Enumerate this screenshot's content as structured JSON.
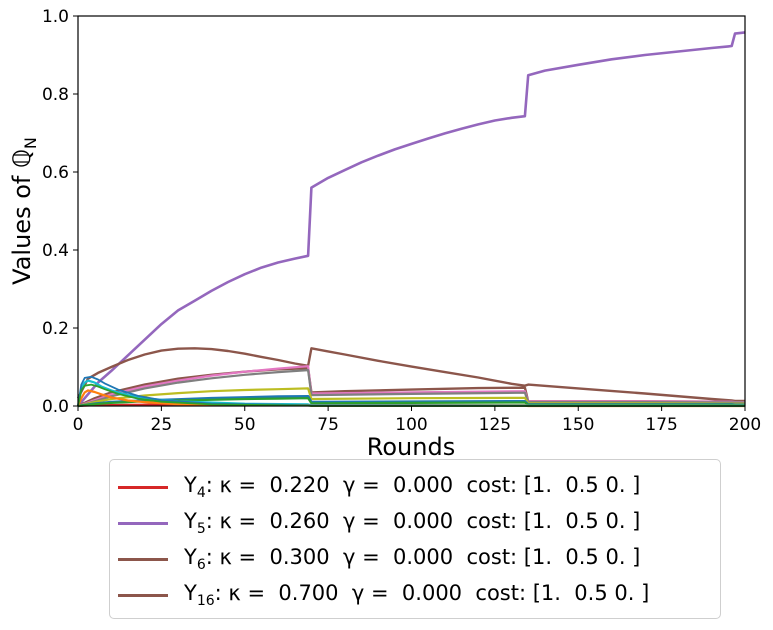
{
  "chart_data": {
    "type": "line",
    "xlabel": "Rounds",
    "ylabel": "Values of ℚ",
    "ylabel_sub": "N",
    "xlim": [
      0,
      200
    ],
    "ylim": [
      0,
      1.0
    ],
    "x_ticks": [
      "0",
      "25",
      "50",
      "75",
      "100",
      "125",
      "150",
      "175",
      "200"
    ],
    "y_ticks": [
      "0.0",
      "0.2",
      "0.4",
      "0.6",
      "0.8",
      "1.0"
    ],
    "grid": false,
    "legend_position": "below",
    "series": [
      {
        "name": "Y4",
        "color": "#d62728",
        "width": 2.0,
        "x": [
          0,
          5,
          15,
          30,
          50,
          69,
          70,
          100,
          134,
          135,
          170,
          196,
          197,
          200
        ],
        "y": [
          0.0,
          0.002,
          0.003,
          0.004,
          0.003,
          0.003,
          0.002,
          0.002,
          0.001,
          0.001,
          0.001,
          0.001,
          0.0,
          0.0
        ]
      },
      {
        "name": "Y5",
        "color": "#9467bd",
        "width": 2.6,
        "x": [
          0,
          3,
          6,
          10,
          15,
          20,
          25,
          30,
          35,
          40,
          45,
          50,
          55,
          60,
          65,
          69,
          70,
          75,
          80,
          85,
          90,
          95,
          100,
          105,
          110,
          115,
          120,
          125,
          130,
          134,
          135,
          140,
          150,
          160,
          170,
          180,
          190,
          195,
          196,
          197,
          200
        ],
        "y": [
          0.0,
          0.03,
          0.06,
          0.09,
          0.13,
          0.17,
          0.21,
          0.245,
          0.27,
          0.295,
          0.318,
          0.338,
          0.355,
          0.368,
          0.378,
          0.385,
          0.56,
          0.585,
          0.605,
          0.625,
          0.642,
          0.658,
          0.672,
          0.686,
          0.699,
          0.711,
          0.722,
          0.732,
          0.739,
          0.743,
          0.848,
          0.86,
          0.875,
          0.889,
          0.9,
          0.909,
          0.918,
          0.922,
          0.923,
          0.955,
          0.958
        ]
      },
      {
        "name": "Y6",
        "color": "#8c564b",
        "width": 2.4,
        "x": [
          0,
          5,
          10,
          20,
          30,
          40,
          50,
          60,
          69,
          70,
          80,
          100,
          120,
          134,
          135,
          150,
          170,
          196,
          197,
          200
        ],
        "y": [
          0.0,
          0.02,
          0.035,
          0.055,
          0.07,
          0.08,
          0.088,
          0.094,
          0.097,
          0.035,
          0.038,
          0.042,
          0.046,
          0.047,
          0.012,
          0.012,
          0.012,
          0.011,
          0.012,
          0.012
        ]
      },
      {
        "name": "Y16",
        "color": "#8c564b",
        "width": 2.4,
        "x": [
          0,
          3,
          6,
          10,
          15,
          20,
          25,
          30,
          35,
          40,
          45,
          50,
          55,
          60,
          65,
          69,
          70,
          75,
          80,
          90,
          100,
          110,
          120,
          130,
          134,
          135,
          150,
          170,
          190,
          196,
          197,
          200
        ],
        "y": [
          0.02,
          0.07,
          0.085,
          0.1,
          0.118,
          0.132,
          0.142,
          0.147,
          0.148,
          0.146,
          0.141,
          0.134,
          0.126,
          0.118,
          0.109,
          0.103,
          0.148,
          0.14,
          0.132,
          0.116,
          0.101,
          0.087,
          0.073,
          0.057,
          0.052,
          0.055,
          0.045,
          0.032,
          0.018,
          0.014,
          0.013,
          0.013
        ]
      },
      {
        "name": "",
        "color": "#e377c2",
        "width": 2.2,
        "x": [
          0,
          5,
          10,
          20,
          30,
          40,
          50,
          60,
          69,
          70,
          100,
          134,
          135,
          170,
          196,
          197,
          200
        ],
        "y": [
          0.0,
          0.015,
          0.03,
          0.05,
          0.065,
          0.078,
          0.088,
          0.096,
          0.102,
          0.032,
          0.035,
          0.038,
          0.012,
          0.012,
          0.011,
          0.01,
          0.01
        ]
      },
      {
        "name": "",
        "color": "#7f7f7f",
        "width": 2.2,
        "x": [
          0,
          5,
          10,
          20,
          30,
          40,
          50,
          60,
          69,
          70,
          100,
          134,
          135,
          170,
          196,
          197,
          200
        ],
        "y": [
          0.0,
          0.012,
          0.025,
          0.045,
          0.06,
          0.071,
          0.08,
          0.087,
          0.092,
          0.028,
          0.031,
          0.034,
          0.01,
          0.01,
          0.009,
          0.009,
          0.009
        ]
      },
      {
        "name": "",
        "color": "#bcbd22",
        "width": 2.2,
        "x": [
          0,
          5,
          10,
          20,
          30,
          40,
          50,
          60,
          69,
          70,
          100,
          134,
          135,
          170,
          196,
          197,
          200
        ],
        "y": [
          0.0,
          0.01,
          0.018,
          0.027,
          0.033,
          0.038,
          0.041,
          0.043,
          0.045,
          0.018,
          0.02,
          0.021,
          0.007,
          0.007,
          0.006,
          0.006,
          0.006
        ]
      },
      {
        "name": "",
        "color": "#1f77b4",
        "width": 2.6,
        "x": [
          0,
          5,
          10,
          20,
          30,
          40,
          50,
          60,
          69,
          70,
          100,
          134,
          135,
          170,
          196,
          197,
          200
        ],
        "y": [
          0.0,
          0.006,
          0.01,
          0.014,
          0.017,
          0.02,
          0.022,
          0.024,
          0.025,
          0.01,
          0.011,
          0.012,
          0.004,
          0.004,
          0.004,
          0.003,
          0.003
        ]
      },
      {
        "name": "",
        "color": "#2ca02c",
        "width": 2.2,
        "x": [
          0,
          5,
          10,
          20,
          30,
          40,
          50,
          60,
          69,
          70,
          100,
          134,
          135,
          170,
          196,
          197,
          200
        ],
        "y": [
          0.0,
          0.005,
          0.008,
          0.012,
          0.014,
          0.016,
          0.018,
          0.019,
          0.02,
          0.007,
          0.008,
          0.009,
          0.003,
          0.003,
          0.003,
          0.002,
          0.002
        ]
      },
      {
        "name": "",
        "color": "#17becf",
        "width": 2.2,
        "x": [
          0,
          1,
          2,
          3,
          5,
          7,
          10,
          15,
          20,
          30,
          50,
          69,
          70,
          100,
          134,
          135,
          200
        ],
        "y": [
          0.0,
          0.045,
          0.06,
          0.065,
          0.06,
          0.05,
          0.04,
          0.028,
          0.02,
          0.012,
          0.006,
          0.004,
          0.002,
          0.002,
          0.002,
          0.001,
          0.001
        ]
      },
      {
        "name": "",
        "color": "#ff7f0e",
        "width": 2.2,
        "x": [
          0,
          1,
          2,
          3,
          5,
          7,
          10,
          15,
          20,
          30,
          50,
          69,
          70,
          100,
          134,
          135,
          200
        ],
        "y": [
          0.0,
          0.02,
          0.035,
          0.04,
          0.036,
          0.03,
          0.022,
          0.014,
          0.01,
          0.005,
          0.003,
          0.002,
          0.001,
          0.001,
          0.001,
          0.0,
          0.0
        ]
      },
      {
        "name": "",
        "color": "#1f77b4",
        "width": 1.8,
        "x": [
          0,
          1,
          2,
          4,
          6,
          8,
          12,
          18,
          25,
          40,
          69,
          70,
          200
        ],
        "y": [
          0.0,
          0.055,
          0.072,
          0.075,
          0.068,
          0.058,
          0.042,
          0.026,
          0.015,
          0.006,
          0.002,
          0.001,
          0.0
        ]
      },
      {
        "name": "",
        "color": "#2ca02c",
        "width": 1.8,
        "x": [
          0,
          1,
          2,
          4,
          6,
          8,
          12,
          18,
          25,
          40,
          69,
          70,
          200
        ],
        "y": [
          0.0,
          0.04,
          0.052,
          0.055,
          0.05,
          0.043,
          0.031,
          0.019,
          0.011,
          0.004,
          0.001,
          0.0,
          0.0
        ]
      }
    ],
    "legend": [
      {
        "label": "Y",
        "sub": "4",
        "rest": ": κ =  0.220  γ =  0.000  cost: [1.  0.5 0. ]",
        "color": "#d62728"
      },
      {
        "label": "Y",
        "sub": "5",
        "rest": ": κ =  0.260  γ =  0.000  cost: [1.  0.5 0. ]",
        "color": "#9467bd"
      },
      {
        "label": "Y",
        "sub": "6",
        "rest": ": κ =  0.300  γ =  0.000  cost: [1.  0.5 0. ]",
        "color": "#8c564b"
      },
      {
        "label": "Y",
        "sub": "16",
        "rest": ": κ =  0.700  γ =  0.000  cost: [1.  0.5 0. ]",
        "color": "#8c564b"
      }
    ]
  }
}
